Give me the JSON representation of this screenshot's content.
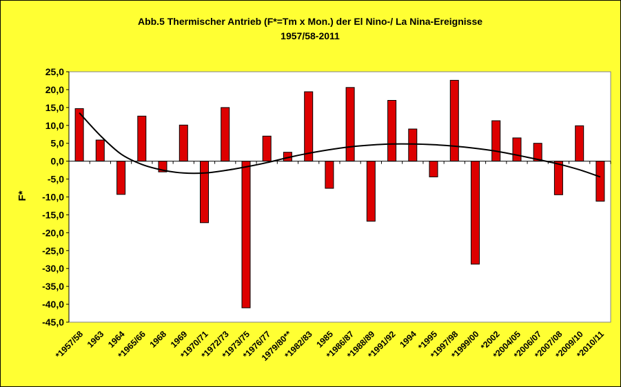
{
  "chart_data": {
    "type": "bar",
    "title": "Abb.5 Thermischer Antrieb (F*=Tm x Mon.) der El Nino-/ La Nina-Ereignisse",
    "subtitle": "1957/58-2011",
    "ylabel": "F*",
    "xlabel": "",
    "ylim": [
      -45,
      25
    ],
    "yticks": [
      "25,0",
      "20,0",
      "15,0",
      "10,0",
      "5,0",
      "0,0",
      "-5,0",
      "-10,0",
      "-15,0",
      "-20,0",
      "-25,0",
      "-30,0",
      "-35,0",
      "-40,0",
      "-45,0"
    ],
    "categories": [
      "*1957/58",
      "1963",
      "1964",
      "*1965/66",
      "1968",
      "1969",
      "*1970/71",
      "*1972/73",
      "*1973/75",
      "*1976/77",
      "1979/80**",
      "*1982/83",
      "1985",
      "*1986/87",
      "*1988/89",
      "*1991/92",
      "1994",
      "*1995",
      "*1997/98",
      "*1999/00",
      "*2002",
      "*2004/05",
      "*2006/07",
      "*2007/08",
      "*2009/10",
      "*2010/11"
    ],
    "values": [
      14.7,
      5.9,
      -9.3,
      12.6,
      -3.0,
      10.1,
      -17.2,
      15.0,
      -41.0,
      7.0,
      2.5,
      19.4,
      -7.6,
      20.6,
      -16.8,
      17.0,
      9.0,
      -4.4,
      22.6,
      -28.8,
      11.3,
      6.5,
      5.0,
      -9.4,
      9.9,
      -11.2
    ],
    "trend": {
      "type": "polynomial",
      "x": [
        1,
        2,
        3,
        4,
        5,
        6,
        7,
        8,
        9,
        10,
        11,
        12,
        13,
        14,
        15,
        16,
        17,
        18,
        19,
        20,
        21,
        22,
        23,
        24,
        25,
        26
      ],
      "y": [
        13.5,
        7.2,
        2.0,
        -0.9,
        -2.5,
        -3.3,
        -3.3,
        -2.6,
        -1.6,
        -0.4,
        1.0,
        2.2,
        3.2,
        4.0,
        4.5,
        4.8,
        4.8,
        4.6,
        4.2,
        3.6,
        2.8,
        1.7,
        0.5,
        -0.8,
        -2.4,
        -4.4
      ]
    },
    "grid": false,
    "legend": "none",
    "colors": {
      "bar": "#dd0000",
      "plot_bg": "#ffffff",
      "page_bg": "#ffff33",
      "trend": "#000000"
    }
  }
}
